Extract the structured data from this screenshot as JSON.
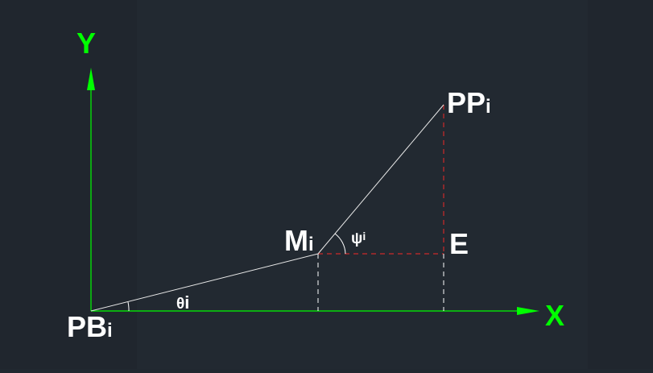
{
  "colors": {
    "background": "#212830",
    "axis": "#00ff00",
    "line": "#ffffff",
    "dashed_red": "#cc2a2a",
    "dashed_white": "#ffffff",
    "text": "#ffffff"
  },
  "axes": {
    "x_label": "X",
    "y_label": "Y"
  },
  "points": {
    "pb": {
      "main": "PB",
      "sub": "i"
    },
    "m": {
      "main": "M",
      "sub": "i"
    },
    "pp": {
      "main": "PP",
      "sub": "i"
    },
    "e": {
      "main": "E"
    }
  },
  "angles": {
    "theta": {
      "main": "θ",
      "sub": "i"
    },
    "psi": {
      "main": "ψ",
      "sub": "i"
    }
  }
}
